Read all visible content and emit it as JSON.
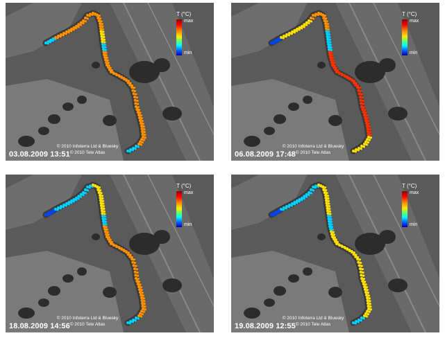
{
  "legend": {
    "title": "T (°C)",
    "max": "max",
    "min": "min"
  },
  "copyright": {
    "line1": "© 2010 Infoterra Ltd & Bluesky",
    "line2": "© 2010 Tele Atlas"
  },
  "panels": [
    {
      "timestamp": "03.08.2009 13:51"
    },
    {
      "timestamp": "06.08.2009 17:48"
    },
    {
      "timestamp": "18.08.2009 14:56"
    },
    {
      "timestamp": "19.08.2009 12:55"
    }
  ],
  "colors": {
    "cold": "#0044ff",
    "cool": "#00d0ff",
    "mid": "#ffe000",
    "warm": "#ff9000",
    "hot": "#ff3000"
  }
}
